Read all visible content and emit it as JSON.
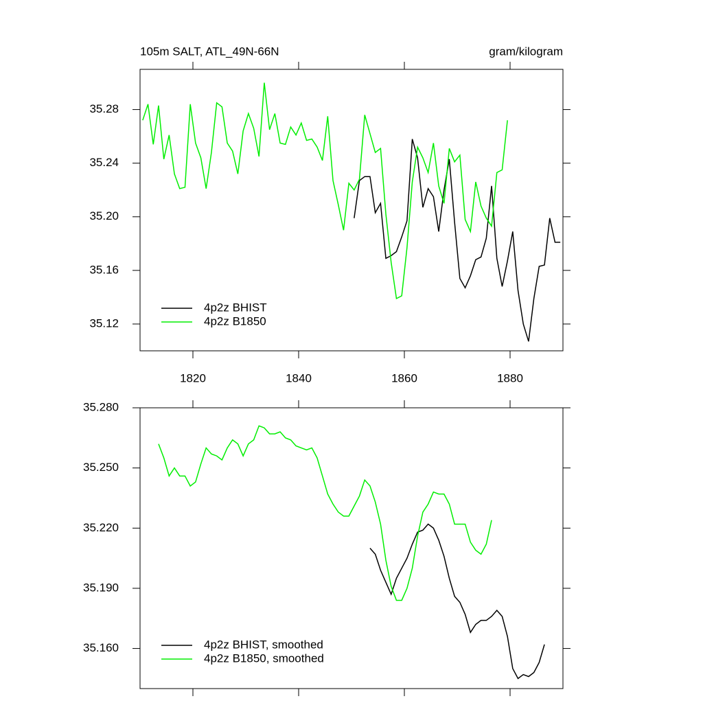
{
  "chart_data": [
    {
      "type": "line",
      "title": "105m SALT, ATL_49N-66N",
      "units": "gram/kilogram",
      "xlim": [
        1810,
        1890
      ],
      "xticks": [
        1820,
        1840,
        1860,
        1880
      ],
      "xtick_labels": true,
      "ylim": [
        35.1,
        35.31
      ],
      "yticks": [
        35.12,
        35.16,
        {
          "value": 35.2,
          "label": "35.20"
        },
        35.24,
        35.28
      ],
      "legend": "lower left",
      "series": [
        {
          "name": "4p2z BHIST",
          "color": "#000000",
          "x": [
            1850.5,
            1851.5,
            1852.5,
            1853.5,
            1854.5,
            1855.5,
            1856.5,
            1857.5,
            1858.5,
            1859.5,
            1860.5,
            1861.5,
            1862.5,
            1863.5,
            1864.5,
            1865.5,
            1866.5,
            1867.5,
            1868.5,
            1869.5,
            1870.5,
            1871.5,
            1872.5,
            1873.5,
            1874.5,
            1875.5,
            1876.5,
            1877.5,
            1878.5,
            1879.5,
            1880.5,
            1881.5,
            1882.5,
            1883.5,
            1884.5,
            1885.5,
            1886.5,
            1887.5,
            1888.5,
            1889.5
          ],
          "values": [
            35.199,
            35.227,
            35.23,
            35.23,
            35.203,
            35.21,
            35.169,
            35.171,
            35.174,
            35.185,
            35.197,
            35.258,
            35.244,
            35.207,
            35.221,
            35.215,
            35.189,
            35.22,
            35.243,
            35.196,
            35.154,
            35.147,
            35.156,
            35.168,
            35.17,
            35.184,
            35.223,
            35.169,
            35.148,
            35.167,
            35.189,
            35.145,
            35.12,
            35.107,
            35.139,
            35.163,
            35.164,
            35.199,
            35.181,
            35.181
          ]
        },
        {
          "name": "4p2z B1850",
          "color": "#00ee00",
          "x": [
            1810.5,
            1811.5,
            1812.5,
            1813.5,
            1814.5,
            1815.5,
            1816.5,
            1817.5,
            1818.5,
            1819.5,
            1820.5,
            1821.5,
            1822.5,
            1823.5,
            1824.5,
            1825.5,
            1826.5,
            1827.5,
            1828.5,
            1829.5,
            1830.5,
            1831.5,
            1832.5,
            1833.5,
            1834.5,
            1835.5,
            1836.5,
            1837.5,
            1838.5,
            1839.5,
            1840.5,
            1841.5,
            1842.5,
            1843.5,
            1844.5,
            1845.5,
            1846.5,
            1847.5,
            1848.5,
            1849.5,
            1850.5,
            1851.5,
            1852.5,
            1853.5,
            1854.5,
            1855.5,
            1856.5,
            1857.5,
            1858.5,
            1859.5,
            1860.5,
            1861.5,
            1862.5,
            1863.5,
            1864.5,
            1865.5,
            1866.5,
            1867.5,
            1868.5,
            1869.5,
            1870.5,
            1871.5,
            1872.5,
            1873.5,
            1874.5,
            1875.5,
            1876.5,
            1877.5,
            1878.5,
            1879.5
          ],
          "values": [
            35.272,
            35.284,
            35.254,
            35.283,
            35.243,
            35.261,
            35.232,
            35.221,
            35.222,
            35.284,
            35.255,
            35.244,
            35.221,
            35.248,
            35.285,
            35.282,
            35.255,
            35.249,
            35.232,
            35.264,
            35.277,
            35.266,
            35.245,
            35.3,
            35.265,
            35.277,
            35.255,
            35.254,
            35.267,
            35.261,
            35.27,
            35.257,
            35.258,
            35.252,
            35.242,
            35.275,
            35.227,
            35.209,
            35.19,
            35.225,
            35.22,
            35.228,
            35.276,
            35.262,
            35.248,
            35.251,
            35.202,
            35.166,
            35.139,
            35.141,
            35.177,
            35.226,
            35.252,
            35.244,
            35.233,
            35.255,
            35.223,
            35.21,
            35.251,
            35.241,
            35.246,
            35.198,
            35.189,
            35.226,
            35.208,
            35.199,
            35.193,
            35.233,
            35.235,
            35.272
          ]
        }
      ]
    },
    {
      "type": "line",
      "xlim": [
        1810,
        1890
      ],
      "xticks": [
        1820,
        1840,
        1860,
        1880
      ],
      "xtick_labels": false,
      "ylim": [
        35.14,
        35.28
      ],
      "yticks": [
        {
          "value": 35.16,
          "label": "35.160"
        },
        {
          "value": 35.19,
          "label": "35.190"
        },
        {
          "value": 35.22,
          "label": "35.220"
        },
        {
          "value": 35.25,
          "label": "35.250"
        },
        {
          "value": 35.28,
          "label": "35.280"
        }
      ],
      "legend": "lower left",
      "series": [
        {
          "name": "4p2z BHIST, smoothed",
          "color": "#000000",
          "x": [
            1853.5,
            1854.5,
            1855.5,
            1856.5,
            1857.5,
            1858.5,
            1859.5,
            1860.5,
            1861.5,
            1862.5,
            1863.5,
            1864.5,
            1865.5,
            1866.5,
            1867.5,
            1868.5,
            1869.5,
            1870.5,
            1871.5,
            1872.5,
            1873.5,
            1874.5,
            1875.5,
            1876.5,
            1877.5,
            1878.5,
            1879.5,
            1880.5,
            1881.5,
            1882.5,
            1883.5,
            1884.5,
            1885.5,
            1886.5
          ],
          "values": [
            35.21,
            35.207,
            35.199,
            35.193,
            35.187,
            35.195,
            35.2,
            35.205,
            35.212,
            35.218,
            35.219,
            35.222,
            35.22,
            35.214,
            35.206,
            35.195,
            35.186,
            35.183,
            35.177,
            35.168,
            35.172,
            35.174,
            35.174,
            35.176,
            35.179,
            35.176,
            35.166,
            35.15,
            35.145,
            35.147,
            35.146,
            35.148,
            35.153,
            35.162
          ]
        },
        {
          "name": "4p2z B1850, smoothed",
          "color": "#00ee00",
          "x": [
            1813.5,
            1814.5,
            1815.5,
            1816.5,
            1817.5,
            1818.5,
            1819.5,
            1820.5,
            1821.5,
            1822.5,
            1823.5,
            1824.5,
            1825.5,
            1826.5,
            1827.5,
            1828.5,
            1829.5,
            1830.5,
            1831.5,
            1832.5,
            1833.5,
            1834.5,
            1835.5,
            1836.5,
            1837.5,
            1838.5,
            1839.5,
            1840.5,
            1841.5,
            1842.5,
            1843.5,
            1844.5,
            1845.5,
            1846.5,
            1847.5,
            1848.5,
            1849.5,
            1850.5,
            1851.5,
            1852.5,
            1853.5,
            1854.5,
            1855.5,
            1856.5,
            1857.5,
            1858.5,
            1859.5,
            1860.5,
            1861.5,
            1862.5,
            1863.5,
            1864.5,
            1865.5,
            1866.5,
            1867.5,
            1868.5,
            1869.5,
            1870.5,
            1871.5,
            1872.5,
            1873.5,
            1874.5,
            1875.5,
            1876.5
          ],
          "values": [
            35.262,
            35.255,
            35.246,
            35.25,
            35.246,
            35.246,
            35.241,
            35.243,
            35.252,
            35.26,
            35.257,
            35.256,
            35.254,
            35.26,
            35.264,
            35.262,
            35.256,
            35.262,
            35.264,
            35.271,
            35.27,
            35.267,
            35.267,
            35.268,
            35.265,
            35.264,
            35.261,
            35.26,
            35.259,
            35.26,
            35.255,
            35.246,
            35.237,
            35.232,
            35.228,
            35.226,
            35.226,
            35.231,
            35.236,
            35.244,
            35.241,
            35.233,
            35.222,
            35.204,
            35.191,
            35.184,
            35.184,
            35.19,
            35.2,
            35.216,
            35.228,
            35.232,
            35.238,
            35.237,
            35.237,
            35.232,
            35.222,
            35.222,
            35.222,
            35.213,
            35.209,
            35.207,
            35.212,
            35.224
          ]
        }
      ]
    }
  ]
}
